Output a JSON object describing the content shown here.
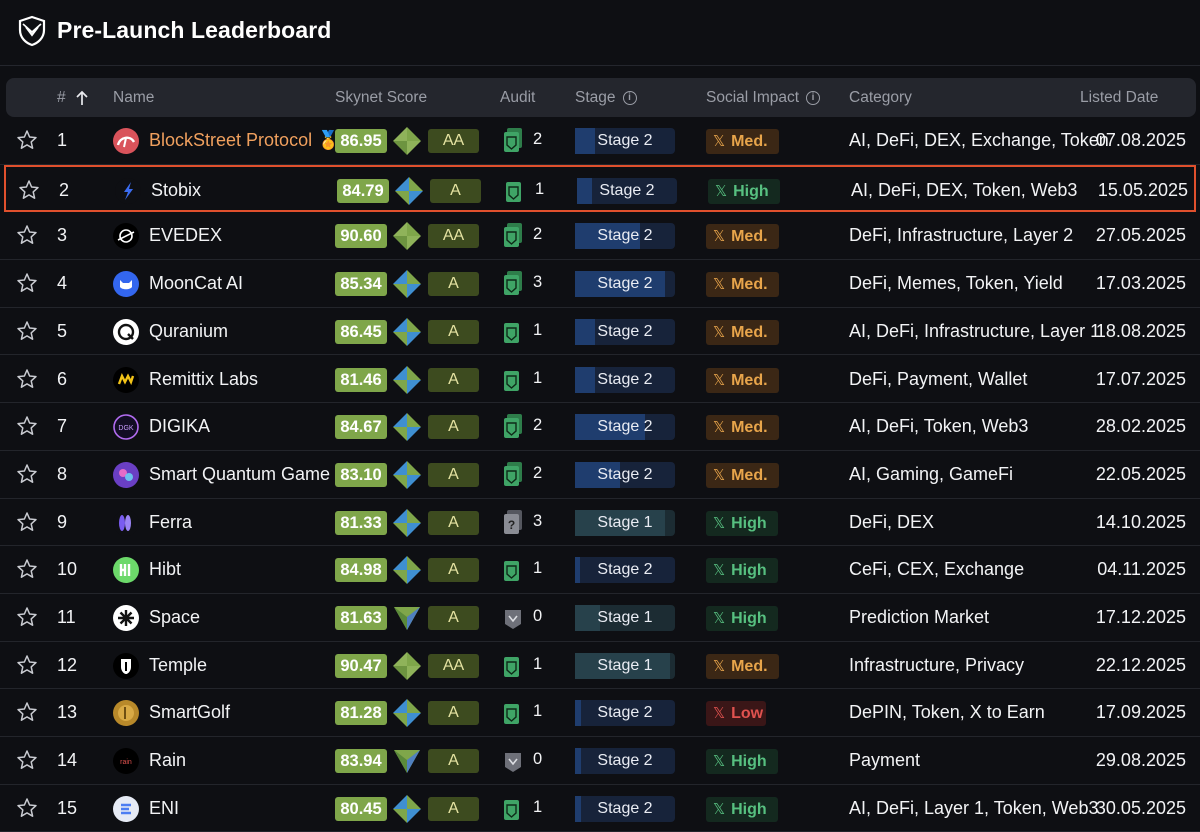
{
  "page": {
    "title": "Pre-Launch Leaderboard",
    "logo_icon": "shield-logo-icon"
  },
  "columns": {
    "rank": "#",
    "name": "Name",
    "score": "Skynet Score",
    "audit": "Audit",
    "stage": "Stage",
    "social": "Social Impact",
    "category": "Category",
    "date": "Listed Date"
  },
  "colors": {
    "accent_selected": "#e0502d",
    "score_bg": "#7fa64a",
    "high": "#57c080",
    "med": "#e8a54b",
    "low": "#e0524f"
  },
  "rows": [
    {
      "rank": "1",
      "name": "BlockStreet Protocol",
      "name_suffix": "🏅",
      "score": "86.95",
      "grade": "AA",
      "audit_count": "2",
      "audit_icon": "audit-multi",
      "stage": "Stage 2",
      "stage_progress": 0.2,
      "social": "Med.",
      "social_level": "med",
      "category": "AI, DeFi, DEX, Exchange, Token",
      "date": "07.08.2025",
      "selected": false,
      "avatar": "blockstreet"
    },
    {
      "rank": "2",
      "name": "Stobix",
      "score": "84.79",
      "grade": "A",
      "audit_count": "1",
      "audit_icon": "audit-single",
      "stage": "Stage 2",
      "stage_progress": 0.15,
      "social": "High",
      "social_level": "high",
      "category": "AI, DeFi, DEX, Token, Web3",
      "date": "15.05.2025",
      "selected": true,
      "avatar": "stobix"
    },
    {
      "rank": "3",
      "name": "EVEDEX",
      "score": "90.60",
      "grade": "AA",
      "audit_count": "2",
      "audit_icon": "audit-multi",
      "stage": "Stage 2",
      "stage_progress": 0.65,
      "social": "Med.",
      "social_level": "med",
      "category": "DeFi, Infrastructure, Layer 2",
      "date": "27.05.2025",
      "selected": false,
      "avatar": "evedex"
    },
    {
      "rank": "4",
      "name": "MoonCat AI",
      "score": "85.34",
      "grade": "A",
      "audit_count": "3",
      "audit_icon": "audit-multi",
      "stage": "Stage 2",
      "stage_progress": 0.9,
      "social": "Med.",
      "social_level": "med",
      "category": "DeFi, Memes, Token, Yield",
      "date": "17.03.2025",
      "selected": false,
      "avatar": "mooncat"
    },
    {
      "rank": "5",
      "name": "Quranium",
      "score": "86.45",
      "grade": "A",
      "audit_count": "1",
      "audit_icon": "audit-single",
      "stage": "Stage 2",
      "stage_progress": 0.2,
      "social": "Med.",
      "social_level": "med",
      "category": "AI, DeFi, Infrastructure, Layer 1",
      "date": "18.08.2025",
      "selected": false,
      "avatar": "quranium"
    },
    {
      "rank": "6",
      "name": "Remittix Labs",
      "score": "81.46",
      "grade": "A",
      "audit_count": "1",
      "audit_icon": "audit-single",
      "stage": "Stage 2",
      "stage_progress": 0.2,
      "social": "Med.",
      "social_level": "med",
      "category": "DeFi, Payment, Wallet",
      "date": "17.07.2025",
      "selected": false,
      "avatar": "remittix"
    },
    {
      "rank": "7",
      "name": "DIGIKA",
      "score": "84.67",
      "grade": "A",
      "audit_count": "2",
      "audit_icon": "audit-multi",
      "stage": "Stage 2",
      "stage_progress": 0.7,
      "social": "Med.",
      "social_level": "med",
      "category": "AI, DeFi, Token, Web3",
      "date": "28.02.2025",
      "selected": false,
      "avatar": "digika"
    },
    {
      "rank": "8",
      "name": "Smart Quantum Game",
      "score": "83.10",
      "grade": "A",
      "audit_count": "2",
      "audit_icon": "audit-multi",
      "stage": "Stage 2",
      "stage_progress": 0.45,
      "social": "Med.",
      "social_level": "med",
      "category": "AI, Gaming, GameFi",
      "date": "22.05.2025",
      "selected": false,
      "avatar": "sqg"
    },
    {
      "rank": "9",
      "name": "Ferra",
      "score": "81.33",
      "grade": "A",
      "audit_count": "3",
      "audit_icon": "audit-unknown",
      "stage": "Stage 1",
      "stage_progress": 0.9,
      "social": "High",
      "social_level": "high",
      "category": "DeFi, DEX",
      "date": "14.10.2025",
      "selected": false,
      "avatar": "ferra"
    },
    {
      "rank": "10",
      "name": "Hibt",
      "score": "84.98",
      "grade": "A",
      "audit_count": "1",
      "audit_icon": "audit-single",
      "stage": "Stage 2",
      "stage_progress": 0.05,
      "social": "High",
      "social_level": "high",
      "category": "CeFi, CEX, Exchange",
      "date": "04.11.2025",
      "selected": false,
      "avatar": "hibt"
    },
    {
      "rank": "11",
      "name": "Space",
      "score": "81.63",
      "grade": "A",
      "audit_count": "0",
      "audit_icon": "audit-none",
      "stage": "Stage 1",
      "stage_progress": 0.25,
      "social": "High",
      "social_level": "high",
      "category": "Prediction Market",
      "date": "17.12.2025",
      "selected": false,
      "avatar": "space"
    },
    {
      "rank": "12",
      "name": "Temple",
      "score": "90.47",
      "grade": "AA",
      "audit_count": "1",
      "audit_icon": "audit-single",
      "stage": "Stage 1",
      "stage_progress": 0.95,
      "social": "Med.",
      "social_level": "med",
      "category": "Infrastructure, Privacy",
      "date": "22.12.2025",
      "selected": false,
      "avatar": "temple"
    },
    {
      "rank": "13",
      "name": "SmartGolf",
      "score": "81.28",
      "grade": "A",
      "audit_count": "1",
      "audit_icon": "audit-single",
      "stage": "Stage 2",
      "stage_progress": 0.06,
      "social": "Low",
      "social_level": "low",
      "category": "DePIN, Token, X to Earn",
      "date": "17.09.2025",
      "selected": false,
      "avatar": "smartgolf"
    },
    {
      "rank": "14",
      "name": "Rain",
      "score": "83.94",
      "grade": "A",
      "audit_count": "0",
      "audit_icon": "audit-none",
      "stage": "Stage 2",
      "stage_progress": 0.06,
      "social": "High",
      "social_level": "high",
      "category": "Payment",
      "date": "29.08.2025",
      "selected": false,
      "avatar": "rain"
    },
    {
      "rank": "15",
      "name": "ENI",
      "score": "80.45",
      "grade": "A",
      "audit_count": "1",
      "audit_icon": "audit-single",
      "stage": "Stage 2",
      "stage_progress": 0.06,
      "social": "High",
      "social_level": "high",
      "category": "AI, DeFi, Layer 1, Token, Web3",
      "date": "30.05.2025",
      "selected": false,
      "avatar": "eni"
    }
  ]
}
